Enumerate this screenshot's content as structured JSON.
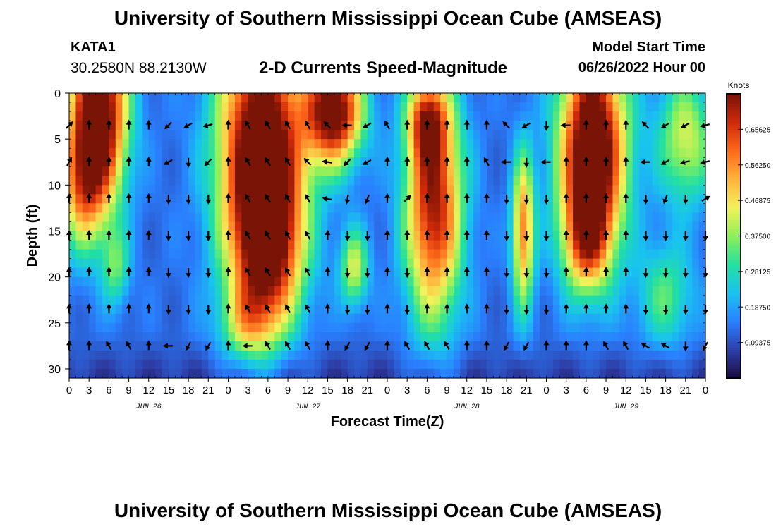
{
  "header": {
    "title": "University of Southern Mississippi Ocean Cube (AMSEAS)",
    "station": "KATA1",
    "coords": "30.2580N  88.2130W",
    "subtitle": "2-D Currents Speed-Magnitude",
    "model_start_label": "Model Start Time",
    "model_start_value": "06/26/2022 Hour 00"
  },
  "footer": {
    "title": "University of Southern Mississippi Ocean Cube (AMSEAS)"
  },
  "chart_data": {
    "type": "heatmap",
    "xlabel": "Forecast Time(Z)",
    "ylabel": "Depth (ft)",
    "x_range_hours": [
      0,
      96
    ],
    "y_range_ft": [
      0,
      31
    ],
    "x_ticks": [
      {
        "hour": 0,
        "label": "0"
      },
      {
        "hour": 3,
        "label": "3"
      },
      {
        "hour": 6,
        "label": "6"
      },
      {
        "hour": 9,
        "label": "9"
      },
      {
        "hour": 12,
        "label": "12"
      },
      {
        "hour": 15,
        "label": "15"
      },
      {
        "hour": 18,
        "label": "18"
      },
      {
        "hour": 21,
        "label": "21"
      },
      {
        "hour": 24,
        "label": "0"
      },
      {
        "hour": 27,
        "label": "3"
      },
      {
        "hour": 30,
        "label": "6"
      },
      {
        "hour": 33,
        "label": "9"
      },
      {
        "hour": 36,
        "label": "12"
      },
      {
        "hour": 39,
        "label": "15"
      },
      {
        "hour": 42,
        "label": "18"
      },
      {
        "hour": 45,
        "label": "21"
      },
      {
        "hour": 48,
        "label": "0"
      },
      {
        "hour": 51,
        "label": "3"
      },
      {
        "hour": 54,
        "label": "6"
      },
      {
        "hour": 57,
        "label": "9"
      },
      {
        "hour": 60,
        "label": "12"
      },
      {
        "hour": 63,
        "label": "15"
      },
      {
        "hour": 66,
        "label": "18"
      },
      {
        "hour": 69,
        "label": "21"
      },
      {
        "hour": 72,
        "label": "0"
      },
      {
        "hour": 75,
        "label": "3"
      },
      {
        "hour": 78,
        "label": "6"
      },
      {
        "hour": 81,
        "label": "9"
      },
      {
        "hour": 84,
        "label": "12"
      },
      {
        "hour": 87,
        "label": "15"
      },
      {
        "hour": 90,
        "label": "18"
      },
      {
        "hour": 93,
        "label": "21"
      },
      {
        "hour": 96,
        "label": "0"
      }
    ],
    "date_labels": [
      {
        "hour": 12,
        "label": "JUN 26"
      },
      {
        "hour": 36,
        "label": "JUN 27"
      },
      {
        "hour": 60,
        "label": "JUN 28"
      },
      {
        "hour": 84,
        "label": "JUN 29"
      }
    ],
    "y_ticks": [
      0,
      5,
      10,
      15,
      20,
      25,
      30
    ],
    "colorbar": {
      "unit": "Knots",
      "range": [
        0,
        0.75
      ],
      "ticks": [
        "0.09375",
        "0.18750",
        "0.28125",
        "0.37500",
        "0.46875",
        "0.56250",
        "0.65625"
      ],
      "tick_values": [
        0.09375,
        0.1875,
        0.28125,
        0.375,
        0.46875,
        0.5625,
        0.65625
      ],
      "colors": [
        "#1a0a3c",
        "#2d3fa8",
        "#2a7fff",
        "#19c3f0",
        "#22e0a0",
        "#8cf05a",
        "#f2f25a",
        "#ffb43c",
        "#ff6a1a",
        "#d02a0a",
        "#7a1406"
      ]
    },
    "speed_hotspots": [
      {
        "hour": 4.5,
        "depth": 2,
        "sh": 3.0,
        "sd": 7,
        "amp": 0.72
      },
      {
        "hour": 2,
        "depth": 10,
        "sh": 2.5,
        "sd": 5,
        "amp": 0.35
      },
      {
        "hour": 7,
        "depth": 19,
        "sh": 1.5,
        "sd": 3,
        "amp": 0.2
      },
      {
        "hour": 29,
        "depth": 6,
        "sh": 4.5,
        "sd": 10,
        "amp": 0.75
      },
      {
        "hour": 30,
        "depth": 17,
        "sh": 3.5,
        "sd": 6,
        "amp": 0.45
      },
      {
        "hour": 27,
        "depth": 25,
        "sh": 3.0,
        "sd": 3,
        "amp": 0.22
      },
      {
        "hour": 40,
        "depth": 2,
        "sh": 3.0,
        "sd": 4,
        "amp": 0.68
      },
      {
        "hour": 43,
        "depth": 19,
        "sh": 1.5,
        "sd": 3,
        "amp": 0.3
      },
      {
        "hour": 55,
        "depth": 12,
        "sh": 3.0,
        "sd": 9,
        "amp": 0.6
      },
      {
        "hour": 54,
        "depth": 3,
        "sh": 2.0,
        "sd": 3,
        "amp": 0.35
      },
      {
        "hour": 68.5,
        "depth": 15,
        "sh": 1.2,
        "sd": 6,
        "amp": 0.45
      },
      {
        "hour": 79,
        "depth": 6,
        "sh": 3.5,
        "sd": 8,
        "amp": 0.78
      },
      {
        "hour": 78,
        "depth": 16,
        "sh": 2.5,
        "sd": 4,
        "amp": 0.35
      },
      {
        "hour": 93,
        "depth": 5,
        "sh": 3.0,
        "sd": 5,
        "amp": 0.3
      },
      {
        "hour": 90,
        "depth": 22,
        "sh": 3.0,
        "sd": 4,
        "amp": 0.2
      }
    ],
    "vector_depths_ft": [
      3.5,
      7.5,
      11.5,
      15.5,
      19.5,
      23.5,
      27.5
    ],
    "vector_hours": [
      0,
      3,
      6,
      9,
      12,
      15,
      18,
      21,
      24,
      27,
      30,
      33,
      36,
      39,
      42,
      45,
      48,
      51,
      54,
      57,
      60,
      63,
      66,
      69,
      72,
      75,
      78,
      81,
      84,
      87,
      90,
      93,
      96
    ],
    "vector_direction_deg": [
      [
        45,
        0,
        0,
        0,
        0,
        225,
        240,
        255,
        0,
        330,
        330,
        330,
        330,
        315,
        270,
        240,
        330,
        0,
        0,
        0,
        0,
        0,
        315,
        240,
        180,
        270,
        0,
        0,
        0,
        315,
        240,
        240,
        255
      ],
      [
        30,
        0,
        0,
        0,
        0,
        240,
        180,
        225,
        0,
        330,
        330,
        330,
        315,
        280,
        225,
        240,
        0,
        0,
        0,
        0,
        0,
        330,
        270,
        180,
        270,
        0,
        0,
        0,
        0,
        270,
        240,
        255,
        255
      ],
      [
        0,
        0,
        0,
        0,
        0,
        180,
        180,
        180,
        0,
        330,
        330,
        330,
        330,
        280,
        190,
        200,
        0,
        45,
        0,
        0,
        0,
        0,
        180,
        180,
        180,
        0,
        0,
        0,
        0,
        180,
        200,
        180,
        60
      ],
      [
        0,
        0,
        0,
        0,
        0,
        180,
        180,
        180,
        0,
        330,
        330,
        330,
        330,
        0,
        180,
        180,
        0,
        0,
        0,
        0,
        0,
        0,
        180,
        180,
        180,
        0,
        0,
        0,
        0,
        180,
        180,
        180,
        180
      ],
      [
        0,
        0,
        0,
        0,
        0,
        180,
        180,
        180,
        0,
        330,
        330,
        330,
        330,
        0,
        180,
        180,
        0,
        180,
        0,
        0,
        0,
        0,
        180,
        180,
        180,
        0,
        0,
        0,
        0,
        180,
        180,
        180,
        180
      ],
      [
        0,
        0,
        0,
        0,
        0,
        180,
        180,
        180,
        0,
        330,
        330,
        330,
        330,
        0,
        180,
        180,
        0,
        180,
        0,
        0,
        0,
        0,
        180,
        180,
        180,
        0,
        0,
        0,
        0,
        180,
        180,
        180,
        180
      ],
      [
        0,
        0,
        330,
        330,
        0,
        270,
        210,
        210,
        0,
        270,
        330,
        330,
        330,
        0,
        210,
        210,
        0,
        330,
        330,
        330,
        0,
        0,
        210,
        210,
        0,
        0,
        0,
        330,
        330,
        300,
        300,
        180,
        210
      ]
    ]
  }
}
